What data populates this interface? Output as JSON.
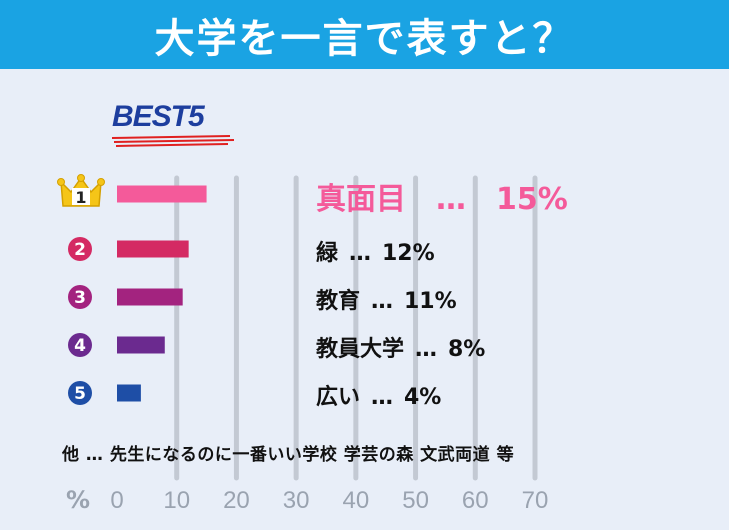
{
  "header": {
    "title": "大学を一言で表すと？"
  },
  "best_label": "BEST5",
  "chart_data": {
    "type": "bar",
    "orientation": "horizontal",
    "categories": [
      "真面目",
      "緑",
      "教育",
      "教員大学",
      "広い"
    ],
    "values": [
      15,
      12,
      11,
      8,
      4
    ],
    "ranks": [
      "1",
      "2",
      "3",
      "4",
      "5"
    ],
    "separator": "…",
    "value_suffix": "%",
    "bar_colors": [
      "#f45a9a",
      "#d42a63",
      "#a3237f",
      "#6b2a8f",
      "#1e4ea6"
    ],
    "xlim": [
      0,
      70
    ],
    "x_ticks": [
      "0",
      "10",
      "20",
      "30",
      "40",
      "50",
      "60",
      "70"
    ],
    "x_unit": "%",
    "grid": true
  },
  "others_text": "他 … 先生になるのに一番いい学校 学芸の森 文武両道 等"
}
